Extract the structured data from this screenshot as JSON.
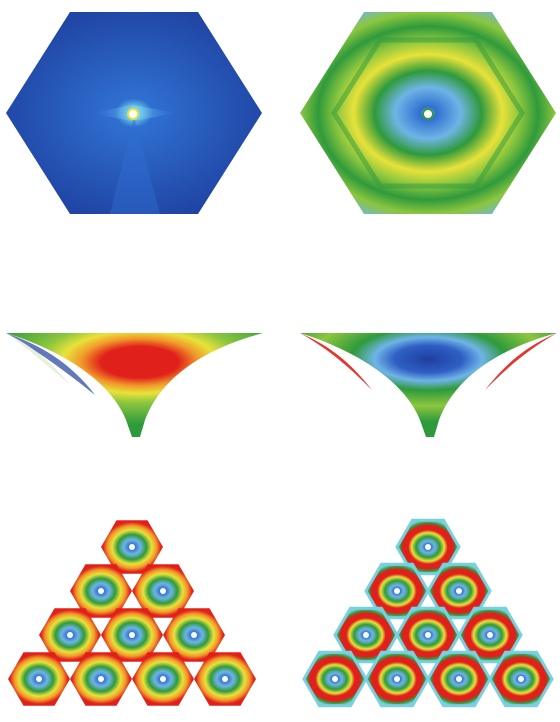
{
  "panels": [
    {
      "id": "hex-top-left",
      "kind": "hexagon-field",
      "palette": "blue-dominant"
    },
    {
      "id": "hex-top-right",
      "kind": "hexagon-field",
      "palette": "rings-green-yellow"
    },
    {
      "id": "funnel-middle-left",
      "kind": "funnel-field",
      "palette": "red-core"
    },
    {
      "id": "funnel-middle-right",
      "kind": "funnel-field",
      "palette": "blue-core"
    },
    {
      "id": "pyramid-bottom-left",
      "kind": "hexagon-array",
      "rows": [
        1,
        2,
        3,
        4
      ],
      "palette": "red-rings"
    },
    {
      "id": "pyramid-bottom-right",
      "kind": "hexagon-array",
      "rows": [
        1,
        2,
        3,
        4
      ],
      "palette": "red-rings-cyan-border"
    }
  ],
  "colors": {
    "deep_blue": "#1e3f9e",
    "blue": "#2f5fc4",
    "light_blue": "#6fb4e6",
    "cyan": "#7ad0e0",
    "green": "#2f9a3c",
    "light_green": "#8cc63f",
    "yellow": "#e8e23a",
    "orange": "#f19a2a",
    "red": "#e0201b",
    "white": "#ffffff"
  }
}
